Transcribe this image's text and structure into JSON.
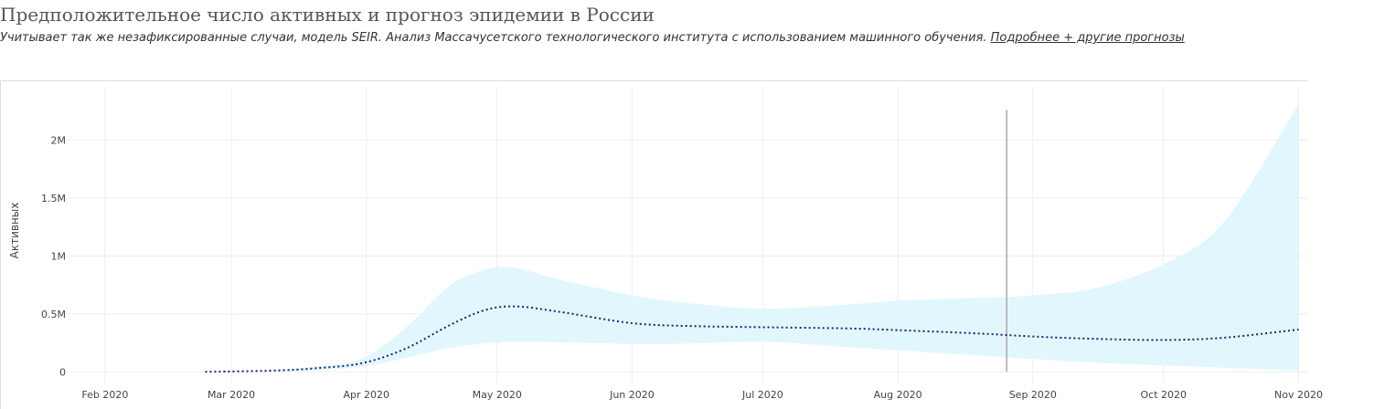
{
  "header": {
    "title": "Предположительное число активных и прогноз эпидемии в России",
    "subtitle": "Учитывает так же незафиксированные случаи, модель SEIR. Анализ Массачусетского технологического института с использованием машинного обучения.",
    "link_label": "Подробнее + другие прогнозы"
  },
  "chart_data": {
    "type": "line",
    "ylabel": "Активных",
    "xlabel": "",
    "x_ticks": [
      "2020-02-01",
      "2020-03-01",
      "2020-04-01",
      "2020-05-01",
      "2020-06-01",
      "2020-07-01",
      "2020-08-01",
      "2020-09-01",
      "2020-10-01",
      "2020-11-01"
    ],
    "x_tick_labels": [
      "Feb 2020",
      "Mar 2020",
      "Apr 2020",
      "May 2020",
      "Jun 2020",
      "Jul 2020",
      "Aug 2020",
      "Sep 2020",
      "Oct 2020",
      "Nov 2020"
    ],
    "xlim": [
      "2020-01-23",
      "2020-11-03"
    ],
    "y_ticks": [
      0,
      500000,
      1000000,
      1500000,
      2000000
    ],
    "y_tick_labels": [
      "0",
      "0.5M",
      "1M",
      "1.5M",
      "2M"
    ],
    "ylim": [
      -100000,
      2460000
    ],
    "grid": true,
    "vertical_marker": "2020-08-26",
    "series": [
      {
        "role": "estimate",
        "style": "dotted",
        "color": "#1b2470",
        "x": [
          "2020-02-24",
          "2020-03-10",
          "2020-03-20",
          "2020-03-31",
          "2020-04-10",
          "2020-04-20",
          "2020-04-28",
          "2020-05-05",
          "2020-05-15",
          "2020-06-01",
          "2020-06-15",
          "2020-07-01",
          "2020-07-20",
          "2020-08-01",
          "2020-08-20",
          "2020-09-01",
          "2020-09-15",
          "2020-10-01",
          "2020-10-15",
          "2020-11-01"
        ],
        "y": [
          0,
          10000,
          30000,
          75000,
          200000,
          400000,
          530000,
          565000,
          520000,
          420000,
          395000,
          385000,
          375000,
          360000,
          330000,
          305000,
          285000,
          275000,
          295000,
          365000
        ]
      }
    ],
    "band": {
      "color": "#e2f7fd",
      "x": [
        "2020-02-24",
        "2020-03-10",
        "2020-03-20",
        "2020-03-31",
        "2020-04-10",
        "2020-04-20",
        "2020-04-28",
        "2020-05-05",
        "2020-05-15",
        "2020-06-01",
        "2020-06-15",
        "2020-07-01",
        "2020-07-20",
        "2020-08-01",
        "2020-08-20",
        "2020-09-01",
        "2020-09-15",
        "2020-10-01",
        "2020-10-15",
        "2020-11-01"
      ],
      "lower": [
        0,
        5000,
        15000,
        45000,
        120000,
        205000,
        245000,
        260000,
        255000,
        240000,
        245000,
        260000,
        215000,
        185000,
        140000,
        110000,
        80000,
        55000,
        35000,
        10000
      ],
      "upper": [
        0,
        15000,
        45000,
        115000,
        380000,
        740000,
        880000,
        900000,
        800000,
        660000,
        590000,
        545000,
        580000,
        615000,
        640000,
        660000,
        720000,
        930000,
        1300000,
        2310000
      ]
    }
  }
}
